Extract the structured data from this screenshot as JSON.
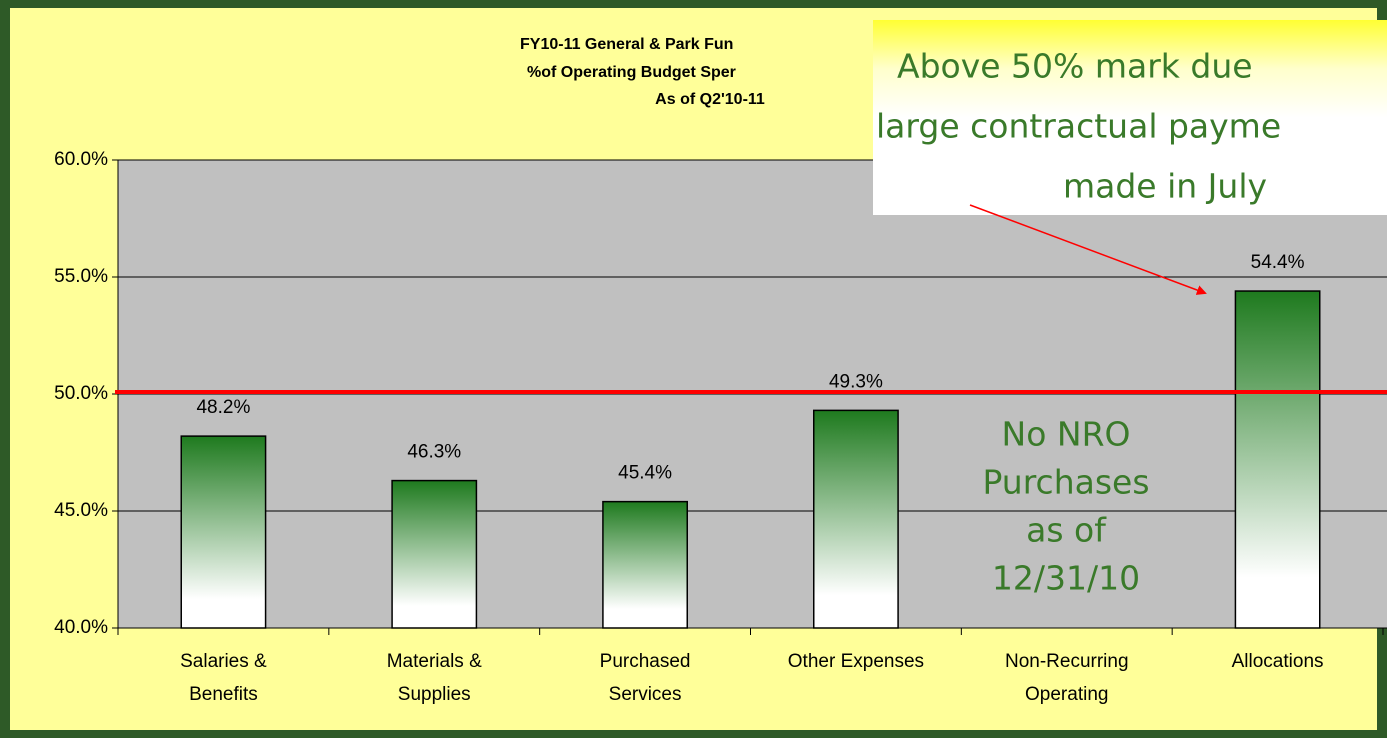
{
  "chart_data": {
    "type": "bar",
    "title": [
      "FY10-11 General & Park Fun",
      "%of Operating Budget Sper",
      "As of Q2'10-11"
    ],
    "categories": [
      [
        "Salaries &",
        "Benefits"
      ],
      [
        "Materials &",
        "Supplies"
      ],
      [
        "Purchased",
        "Services"
      ],
      [
        "Other Expenses"
      ],
      [
        "Non-Recurring",
        "Operating"
      ],
      [
        "Allocations"
      ]
    ],
    "values": [
      48.2,
      46.3,
      45.4,
      49.3,
      null,
      54.4
    ],
    "value_labels": [
      "48.2%",
      "46.3%",
      "45.4%",
      "49.3%",
      null,
      "54.4%"
    ],
    "color": "#1e7a1e",
    "ylim": [
      40,
      60
    ],
    "yticks": [
      {
        "value": 40,
        "label": "40.0%"
      },
      {
        "value": 45,
        "label": "45.0%"
      },
      {
        "value": 50,
        "label": "50.0%"
      },
      {
        "value": 55,
        "label": "55.0%"
      },
      {
        "value": 60,
        "label": "60.0%"
      }
    ],
    "grid": true,
    "reference_line": {
      "value": 50,
      "color": "#ff0000"
    },
    "callout": [
      "Above 50% mark due",
      "large contractual payme",
      "made in July"
    ],
    "annotation": [
      "No NRO",
      "Purchases",
      "as of",
      "12/31/10"
    ]
  }
}
